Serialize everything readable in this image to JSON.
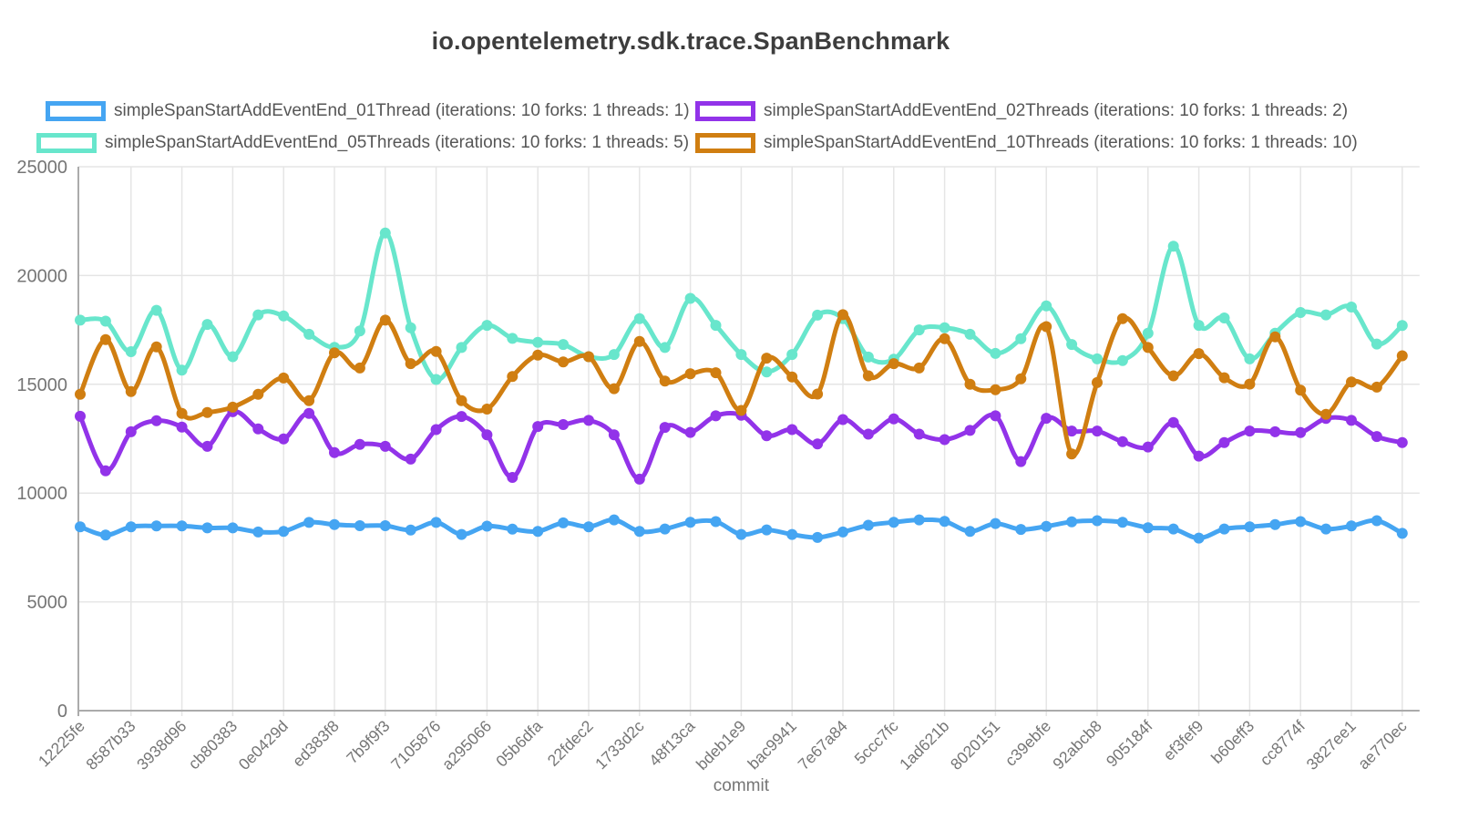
{
  "title": "io.opentelemetry.sdk.trace.SpanBenchmark",
  "legend": {
    "items": [
      {
        "label": "simpleSpanStartAddEventEnd_01Thread (iterations: 10 forks: 1 threads: 1)",
        "color": "#45a5f2",
        "name": "legend-item-01thread"
      },
      {
        "label": "simpleSpanStartAddEventEnd_02Threads (iterations: 10 forks: 1 threads: 2)",
        "color": "#9233e9",
        "name": "legend-item-02threads"
      },
      {
        "label": "simpleSpanStartAddEventEnd_05Threads (iterations: 10 forks: 1 threads: 5)",
        "color": "#68e6cc",
        "name": "legend-item-05threads"
      },
      {
        "label": "simpleSpanStartAddEventEnd_10Threads (iterations: 10 forks: 1 threads: 10)",
        "color": "#d07e11",
        "name": "legend-item-10threads"
      }
    ]
  },
  "chart_data": {
    "type": "line",
    "title": "io.opentelemetry.sdk.trace.SpanBenchmark",
    "xlabel": "commit",
    "ylabel": "",
    "ylim": [
      0,
      25000
    ],
    "y_ticks": [
      0,
      5000,
      10000,
      15000,
      20000,
      25000
    ],
    "grid": true,
    "legend_position": "top",
    "x_label_rotation": -45,
    "label_every": 2,
    "categories": [
      "12225fe",
      "8587b33",
      "3938d96",
      "cb80383",
      "0e0429d",
      "ed383f8",
      "7b9f9f3",
      "7105876",
      "a295066",
      "05b6dfa",
      "22fdec2",
      "1733d2c",
      "48f13ca",
      "bdeb1e9",
      "bac9941",
      "7e67a84",
      "5ccc7fc",
      "1ad621b",
      "8020151",
      "c39ebfe",
      "92abcb8",
      "905184f",
      "ef3fef9",
      "b60eff3",
      "cc8774f",
      "3827ee1",
      "ae770ec"
    ],
    "n_points": 53,
    "note": "53 commits plotted; every 2nd commit is labeled on the x axis",
    "series": [
      {
        "name": "simpleSpanStartAddEventEnd_01Thread (iterations: 10 forks: 1 threads: 1)",
        "color": "#45a5f2",
        "values": [
          8450,
          8070,
          8450,
          8490,
          8490,
          8400,
          8400,
          8210,
          8240,
          8650,
          8550,
          8500,
          8500,
          8300,
          8650,
          8100,
          8480,
          8340,
          8240,
          8630,
          8450,
          8770,
          8240,
          8350,
          8660,
          8690,
          8100,
          8310,
          8100,
          7960,
          8210,
          8520,
          8660,
          8770,
          8700,
          8240,
          8600,
          8330,
          8470,
          8680,
          8730,
          8660,
          8410,
          8350,
          7930,
          8350,
          8450,
          8550,
          8690,
          8350,
          8490,
          8730,
          8150
        ]
      },
      {
        "name": "simpleSpanStartAddEventEnd_02Threads (iterations: 10 forks: 1 threads: 2)",
        "color": "#9233e9",
        "values": [
          13530,
          11020,
          12820,
          13330,
          13030,
          12150,
          13740,
          12950,
          12490,
          13660,
          11860,
          12240,
          12150,
          11560,
          12920,
          13520,
          12680,
          10720,
          13060,
          13150,
          13340,
          12680,
          10640,
          13020,
          12790,
          13550,
          13580,
          12640,
          12920,
          12260,
          13380,
          12710,
          13410,
          12710,
          12460,
          12880,
          13550,
          11450,
          13440,
          12850,
          12850,
          12360,
          12120,
          13240,
          11700,
          12320,
          12850,
          12820,
          12780,
          13430,
          13340,
          12600,
          12320
        ]
      },
      {
        "name": "simpleSpanStartAddEventEnd_05Threads (iterations: 10 forks: 1 threads: 5)",
        "color": "#68e6cc",
        "values": [
          17950,
          17900,
          16500,
          18400,
          15650,
          17750,
          16270,
          18190,
          18140,
          17300,
          16700,
          17450,
          21950,
          17600,
          15220,
          16690,
          17710,
          17110,
          16930,
          16830,
          16270,
          16370,
          18020,
          16690,
          18950,
          17710,
          16370,
          15570,
          16370,
          18180,
          18020,
          16250,
          16150,
          17500,
          17600,
          17300,
          16420,
          17100,
          18600,
          16830,
          16170,
          16090,
          17350,
          21350,
          17710,
          18050,
          16170,
          17350,
          18300,
          18190,
          18550,
          16850,
          17700
        ]
      },
      {
        "name": "simpleSpanStartAddEventEnd_10Threads (iterations: 10 forks: 1 threads: 10)",
        "color": "#d07e11",
        "values": [
          14540,
          17050,
          14670,
          16720,
          13660,
          13700,
          13950,
          14540,
          15290,
          14250,
          16450,
          15750,
          17950,
          15950,
          16510,
          14250,
          13860,
          15360,
          16340,
          16030,
          16270,
          14800,
          16970,
          15150,
          15480,
          15530,
          13800,
          16200,
          15340,
          14550,
          18200,
          15390,
          15950,
          15750,
          17100,
          15000,
          14750,
          15250,
          17650,
          11800,
          15080,
          18020,
          16690,
          15390,
          16410,
          15300,
          15010,
          17180,
          14730,
          13620,
          15110,
          14870,
          16310
        ]
      }
    ]
  },
  "axes": {
    "y_tick_labels": [
      "25000",
      "20000",
      "15000",
      "10000",
      "5000",
      "0"
    ],
    "x_axis_title": "commit"
  },
  "colors": {
    "grid": "#e5e5e5",
    "axis_line": "#ababab",
    "axis_text": "#757575",
    "title_text": "#3d3d3d",
    "legend_text": "#565656",
    "background": "#ffffff"
  }
}
